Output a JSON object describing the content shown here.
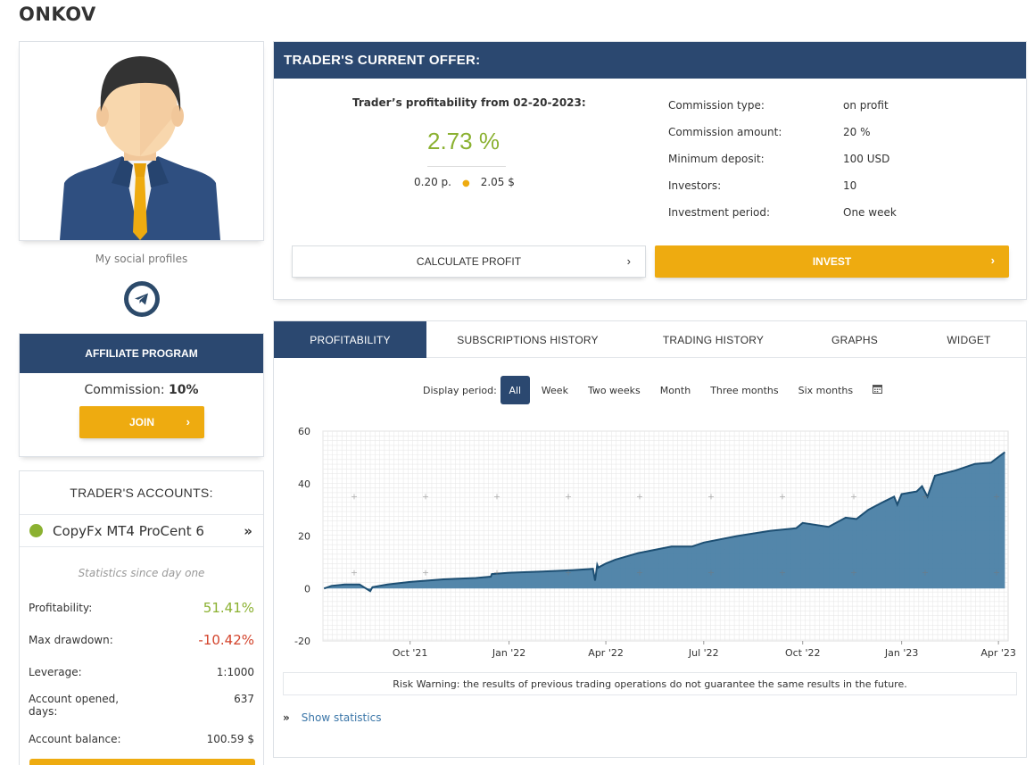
{
  "page_title": "ONKOV",
  "social": {
    "label": "My social profiles",
    "telegram_icon": "telegram-icon"
  },
  "affiliate": {
    "title": "AFFILIATE PROGRAM",
    "commission_label": "Commission:",
    "commission_value": "10%",
    "join_label": "JOIN"
  },
  "accounts": {
    "title": "TRADER'S ACCOUNTS:",
    "account_name": "CopyFx MT4 ProCent 6",
    "status_color": "#8bb131",
    "stats_since": "Statistics since day one",
    "stats": [
      {
        "label": "Profitability:",
        "value": "51.41%"
      },
      {
        "label": "Max drawdown:",
        "value": "-10.42%"
      },
      {
        "label": "Leverage:",
        "value": "1:1000"
      },
      {
        "label": "Account opened,",
        "label2": "days:",
        "value": "637"
      },
      {
        "label": "Account balance:",
        "value": "100.59 $"
      }
    ]
  },
  "offer": {
    "title": "TRADER'S CURRENT OFFER:",
    "profitability_label": "Trader’s profitability from 02-20-2023:",
    "profitability_value": "2.73 %",
    "points": "0.20 p.",
    "usd": "2.05 $",
    "rows": [
      {
        "label": "Commission type:",
        "value": "on profit"
      },
      {
        "label": "Commission amount:",
        "value": "20 %"
      },
      {
        "label": "Minimum deposit:",
        "value": "100 USD"
      },
      {
        "label": "Investors:",
        "value": "10"
      },
      {
        "label": "Investment period:",
        "value": "One week"
      }
    ],
    "calculate_label": "CALCULATE PROFIT",
    "invest_label": "INVEST"
  },
  "tabs": [
    {
      "label": "PROFITABILITY"
    },
    {
      "label": "SUBSCRIPTIONS HISTORY"
    },
    {
      "label": "TRADING HISTORY"
    },
    {
      "label": "GRAPHS"
    },
    {
      "label": "WIDGET"
    }
  ],
  "period": {
    "label": "Display period:",
    "options": [
      "All",
      "Week",
      "Two weeks",
      "Month",
      "Three months",
      "Six months"
    ],
    "selected": "All",
    "calendar_icon": "calendar-icon"
  },
  "chart_data": {
    "type": "area",
    "title": "",
    "xlabel": "",
    "ylabel": "",
    "ylim": [
      -20,
      60
    ],
    "yticks": [
      60,
      40,
      20,
      0,
      -20
    ],
    "xticks": [
      "Oct '21",
      "Jan '22",
      "Apr '22",
      "Jul '22",
      "Oct '22",
      "Jan '23",
      "Apr '23"
    ],
    "xlim": [
      "2021-07-12",
      "2023-04-10"
    ],
    "grid": true,
    "color": "#4a7fa5",
    "series": [
      {
        "x": [
          "2021-07-13",
          "2021-07-20",
          "2021-08-01",
          "2021-08-15",
          "2021-08-25",
          "2021-08-27",
          "2021-09-10",
          "2021-10-01",
          "2021-11-01",
          "2021-12-01",
          "2021-12-15",
          "2021-12-16",
          "2022-01-01",
          "2022-02-01",
          "2022-03-01",
          "2022-03-20",
          "2022-03-22",
          "2022-03-24",
          "2022-03-25",
          "2022-04-01",
          "2022-04-10",
          "2022-05-01",
          "2022-06-01",
          "2022-06-20",
          "2022-07-01",
          "2022-08-01",
          "2022-09-01",
          "2022-09-25",
          "2022-10-01",
          "2022-10-25",
          "2022-11-10",
          "2022-11-20",
          "2022-12-01",
          "2022-12-15",
          "2022-12-25",
          "2022-12-28",
          "2023-01-01",
          "2023-01-15",
          "2023-01-20",
          "2023-01-25",
          "2023-02-01",
          "2023-02-20",
          "2023-03-10",
          "2023-03-25",
          "2023-04-07"
        ],
        "y": [
          0,
          1,
          1.5,
          1.5,
          -1,
          0.5,
          1.5,
          2.5,
          3.5,
          4,
          4.5,
          5.5,
          6,
          6.5,
          7,
          7.5,
          3,
          9,
          8,
          9.5,
          11,
          13.5,
          16,
          16,
          17.5,
          20,
          22,
          23,
          25,
          23.5,
          27,
          26.5,
          30,
          33,
          35,
          32,
          36,
          37,
          39,
          35,
          43,
          45,
          47.5,
          48,
          52
        ]
      }
    ]
  },
  "risk_warning": "Risk Warning: the results of previous trading operations do not guarantee the same results in the future.",
  "show_statistics": "Show statistics"
}
